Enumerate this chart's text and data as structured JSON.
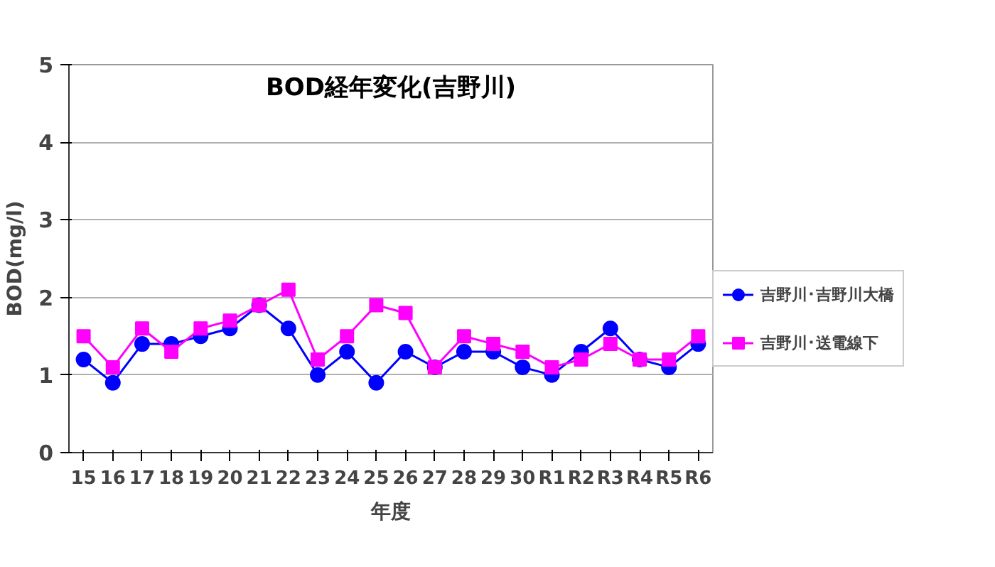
{
  "chart_data": {
    "type": "line",
    "title": "BOD経年変化(吉野川)",
    "xlabel": "年度",
    "ylabel": "BOD(mg/l)",
    "categories": [
      "15",
      "16",
      "17",
      "18",
      "19",
      "20",
      "21",
      "22",
      "23",
      "24",
      "25",
      "26",
      "27",
      "28",
      "29",
      "30",
      "R1",
      "R2",
      "R3",
      "R4",
      "R5",
      "R6"
    ],
    "series": [
      {
        "name": "吉野川･吉野川大橋",
        "color": "#0000ff",
        "marker": "circle",
        "values": [
          1.2,
          0.9,
          1.4,
          1.4,
          1.5,
          1.6,
          1.9,
          1.6,
          1.0,
          1.3,
          0.9,
          1.3,
          1.1,
          1.3,
          1.3,
          1.1,
          1.0,
          1.3,
          1.6,
          1.2,
          1.1,
          1.4
        ]
      },
      {
        "name": "吉野川･送電線下",
        "color": "#ff00ff",
        "marker": "square",
        "values": [
          1.5,
          1.1,
          1.6,
          1.3,
          1.6,
          1.7,
          1.9,
          2.1,
          1.2,
          1.5,
          1.9,
          1.8,
          1.1,
          1.5,
          1.4,
          1.3,
          1.1,
          1.2,
          1.4,
          1.2,
          1.2,
          1.5
        ]
      }
    ],
    "ylim": [
      0,
      5
    ],
    "yticks": [
      0,
      1,
      2,
      3,
      4,
      5
    ],
    "grid": "y",
    "legend": "right"
  }
}
